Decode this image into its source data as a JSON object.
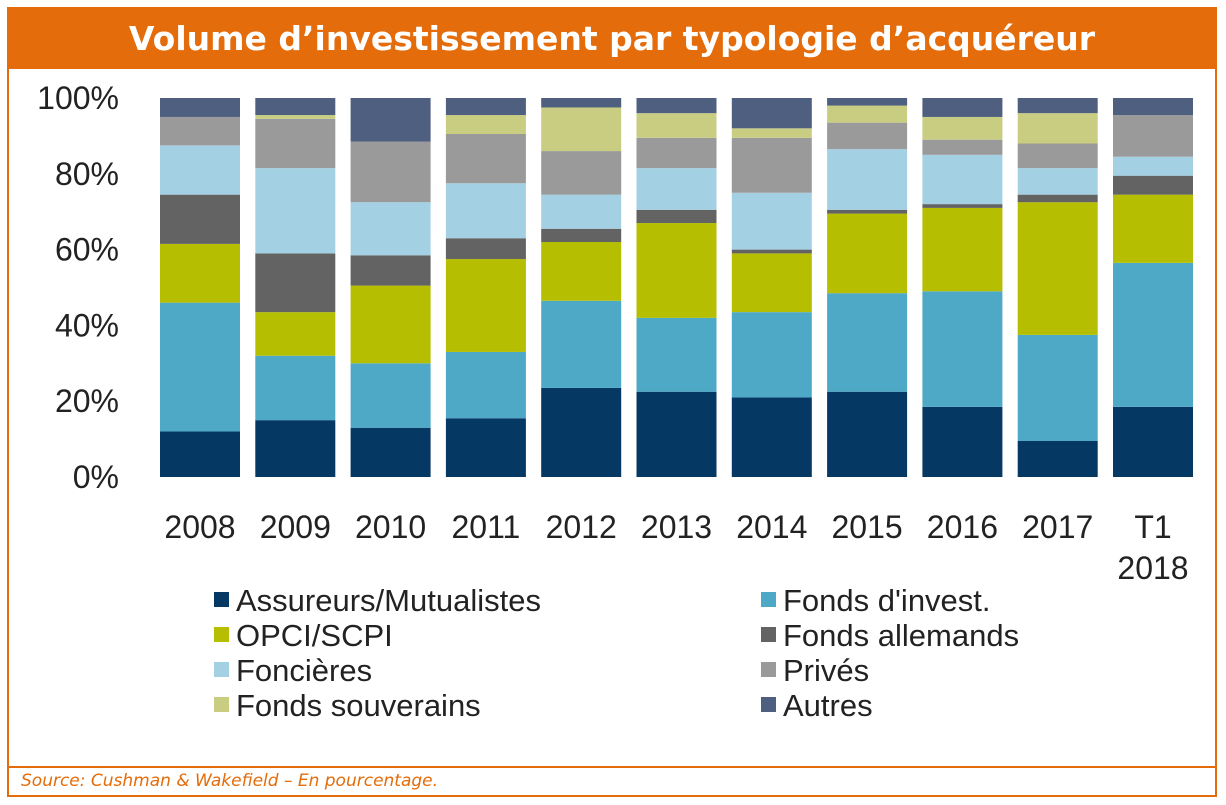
{
  "title": "Volume d’investissement par typologie d’acquéreur",
  "source": "Source: Cushman & Wakefield – En pourcentage.",
  "chart_data": {
    "type": "bar",
    "stacked": true,
    "categories": [
      "2008",
      "2009",
      "2010",
      "2011",
      "2012",
      "2013",
      "2014",
      "2015",
      "2016",
      "2017",
      "T1\n2018"
    ],
    "y_ticks": [
      "0%",
      "20%",
      "40%",
      "60%",
      "80%",
      "100%"
    ],
    "ylim": [
      0,
      100
    ],
    "legend_position": "bottom",
    "series": [
      {
        "name": "Assureurs/Mutualistes",
        "color": "#063864",
        "values": [
          12,
          15,
          13,
          15.5,
          23.5,
          22.5,
          21,
          22.5,
          18.5,
          9.5,
          18.5
        ]
      },
      {
        "name": "Fonds d'invest.",
        "color": "#4ea9c7",
        "values": [
          34,
          17,
          17,
          17.5,
          23,
          19.5,
          22.5,
          26,
          30.5,
          28,
          38
        ]
      },
      {
        "name": "OPCI/SCPI",
        "color": "#b5be00",
        "values": [
          15.5,
          11.5,
          20.5,
          24.5,
          15.5,
          25,
          15.5,
          21,
          22,
          35,
          18
        ]
      },
      {
        "name": "Fonds allemands",
        "color": "#636363",
        "values": [
          13,
          15.5,
          8,
          5.5,
          3.5,
          3.5,
          1,
          1,
          1,
          2,
          5
        ]
      },
      {
        "name": "Foncières",
        "color": "#a3d1e3",
        "values": [
          13,
          22.5,
          14,
          14.5,
          9,
          11,
          15,
          16,
          13,
          7,
          5
        ]
      },
      {
        "name": "Privés",
        "color": "#9a9a9a",
        "values": [
          7.5,
          13,
          16,
          13,
          11.5,
          8,
          14.5,
          7,
          4,
          6.5,
          11
        ]
      },
      {
        "name": "Fonds souverains",
        "color": "#c9cd82",
        "values": [
          0,
          1,
          0,
          5,
          11.5,
          6.5,
          2.5,
          4.5,
          6,
          8,
          0
        ]
      },
      {
        "name": "Autres",
        "color": "#4f5f80",
        "values": [
          5,
          4.5,
          11.5,
          4.5,
          2.5,
          4,
          8,
          2,
          5,
          4,
          4.5
        ]
      }
    ]
  }
}
